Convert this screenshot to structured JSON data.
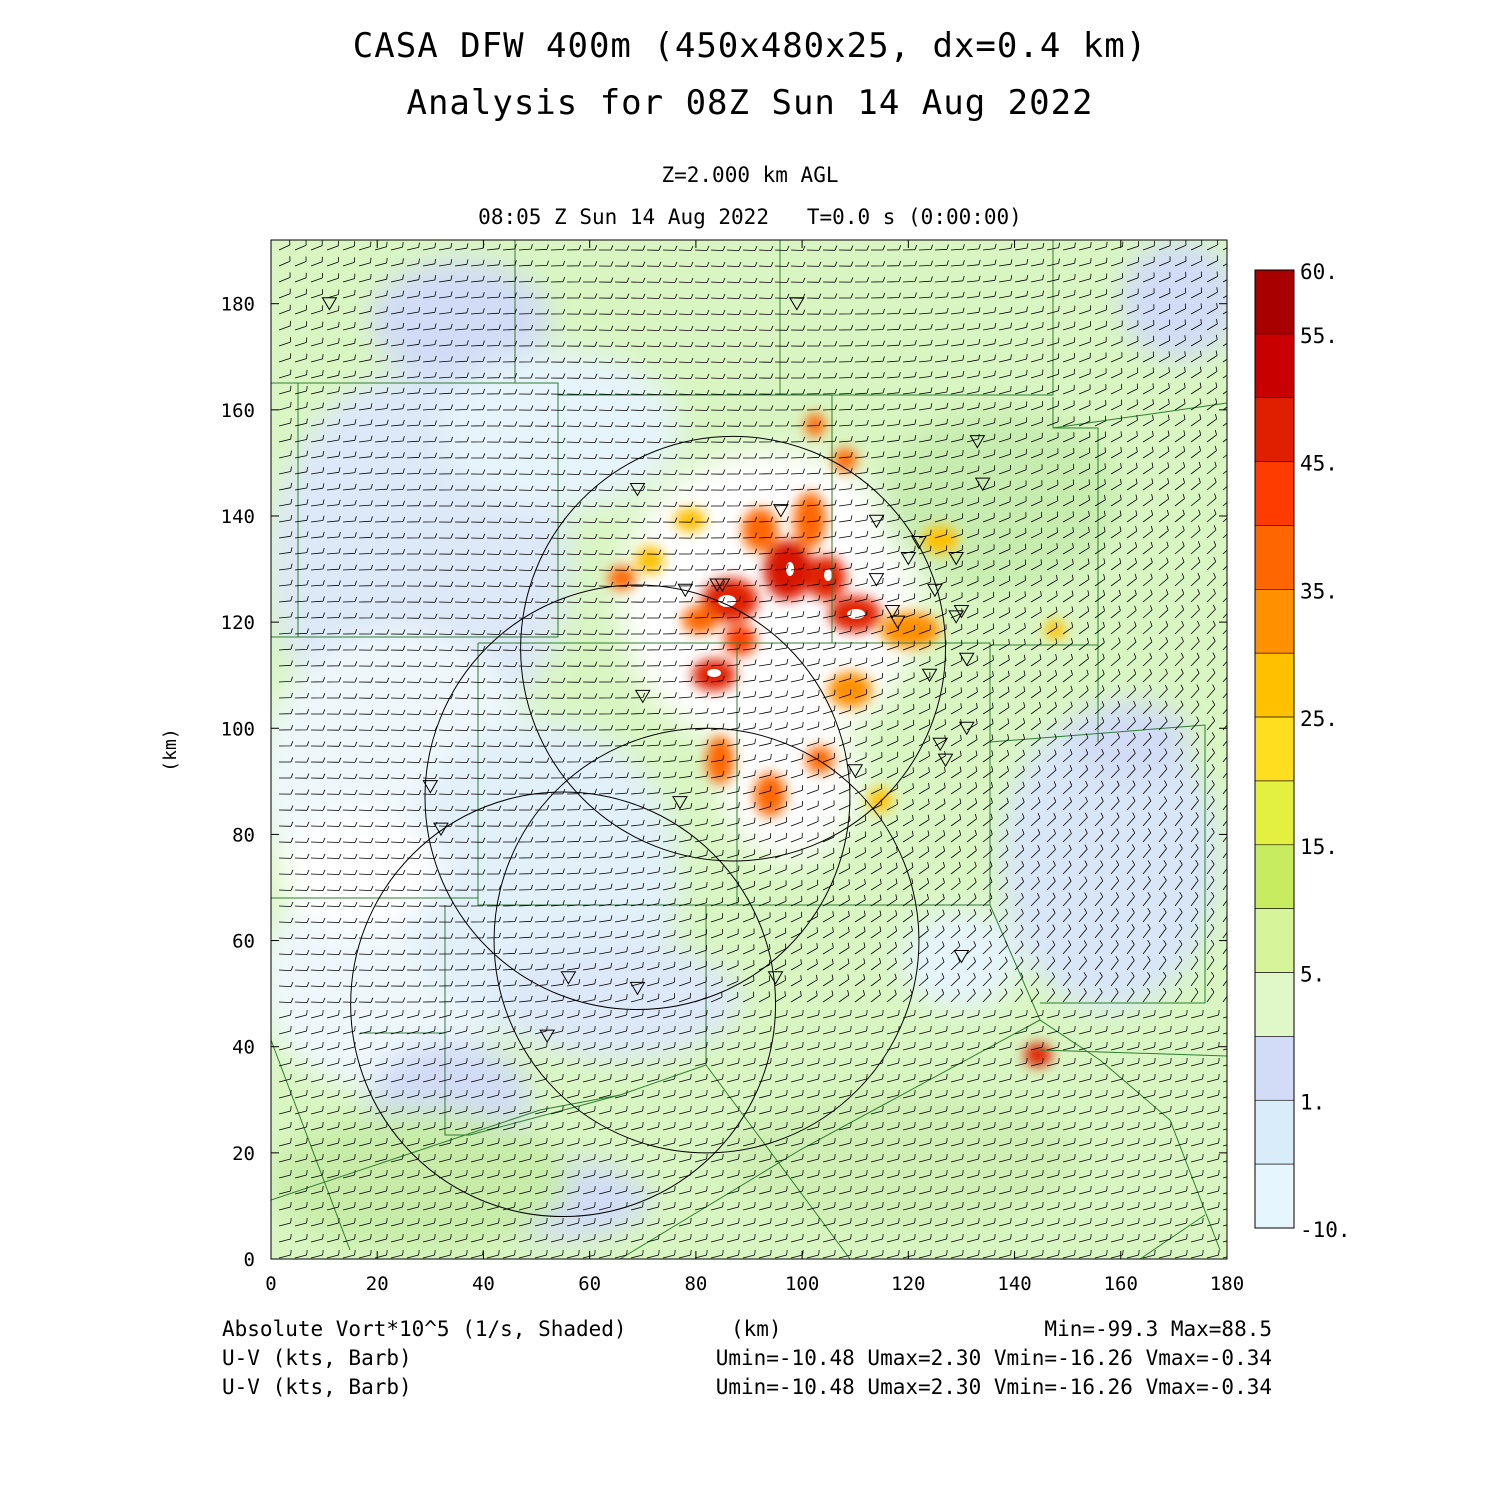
{
  "title": {
    "line1": "CASA DFW 400m (450x480x25, dx=0.4 km)",
    "line2": "Analysis for 08Z Sun 14 Aug 2022"
  },
  "subtitle": {
    "level": "Z=2.000 km AGL",
    "time": "08:05 Z Sun 14 Aug 2022   T=0.0 s (0:00:00)"
  },
  "axes": {
    "x_label": "(km)",
    "y_label": "(km)",
    "x_range": [
      0,
      180
    ],
    "y_range": [
      0,
      192
    ],
    "x_ticks": [
      "0",
      "20",
      "40",
      "60",
      "80",
      "100",
      "120",
      "140",
      "160",
      "180"
    ],
    "y_ticks": [
      "0",
      "20",
      "40",
      "60",
      "80",
      "100",
      "120",
      "140",
      "160",
      "180"
    ]
  },
  "colorbar": {
    "labels": [
      "60.",
      "55.",
      "45.",
      "35.",
      "25.",
      "15.",
      "5.",
      "1.",
      "-10."
    ],
    "colors": [
      "#a80000",
      "#c80000",
      "#e01e00",
      "#ff3c00",
      "#ff6600",
      "#ff9000",
      "#ffc000",
      "#ffde20",
      "#e4f040",
      "#c8ec60",
      "#d6f49a",
      "#e0f8c8",
      "#d2dcf6",
      "#d8ecfa",
      "#e6f6fe"
    ]
  },
  "footer": {
    "field1": "Absolute Vort*10^5 (1/s, Shaded)",
    "field2": "U-V (kts, Barb)",
    "field3": "U-V (kts, Barb)",
    "xunit": "(km)",
    "minmax": "Min=-99.3 Max=88.5",
    "stats1": "Umin=-10.48 Umax=2.30 Vmin=-16.26 Vmax=-0.34",
    "stats2": "Umin=-10.48 Umax=2.30 Vmin=-16.26 Vmax=-0.34"
  },
  "map_features": {
    "radar_rings_km": [
      {
        "cx": 87,
        "cy": 115,
        "r": 40
      },
      {
        "cx": 69,
        "cy": 87,
        "r": 40
      },
      {
        "cx": 82,
        "cy": 60,
        "r": 40
      },
      {
        "cx": 55,
        "cy": 48,
        "r": 40
      }
    ],
    "station_markers_km": [
      [
        11,
        180
      ],
      [
        99,
        180
      ],
      [
        69,
        145
      ],
      [
        96,
        141
      ],
      [
        114,
        139
      ],
      [
        133,
        154
      ],
      [
        134,
        146
      ],
      [
        122,
        135
      ],
      [
        120,
        132
      ],
      [
        129,
        132
      ],
      [
        125,
        126
      ],
      [
        114,
        128
      ],
      [
        78,
        126
      ],
      [
        84,
        127
      ],
      [
        85,
        127
      ],
      [
        117,
        122
      ],
      [
        118,
        120
      ],
      [
        129,
        121
      ],
      [
        130,
        122
      ],
      [
        131,
        113
      ],
      [
        124,
        110
      ],
      [
        70,
        106
      ],
      [
        126,
        97
      ],
      [
        131,
        100
      ],
      [
        127,
        94
      ],
      [
        110,
        92
      ],
      [
        77,
        86
      ],
      [
        30,
        89
      ],
      [
        32,
        81
      ],
      [
        130,
        57
      ],
      [
        56,
        53
      ],
      [
        95,
        53
      ],
      [
        69,
        51
      ],
      [
        52,
        42
      ]
    ],
    "vorticity_maxima_km": [
      [
        84,
        124
      ],
      [
        98,
        130
      ],
      [
        105,
        129
      ],
      [
        110,
        121
      ],
      [
        82,
        111
      ],
      [
        103,
        157
      ],
      [
        70,
        120
      ],
      [
        94,
        87
      ],
      [
        146,
        38
      ],
      [
        119,
        118
      ],
      [
        104,
        116
      ],
      [
        90,
        112
      ]
    ]
  }
}
